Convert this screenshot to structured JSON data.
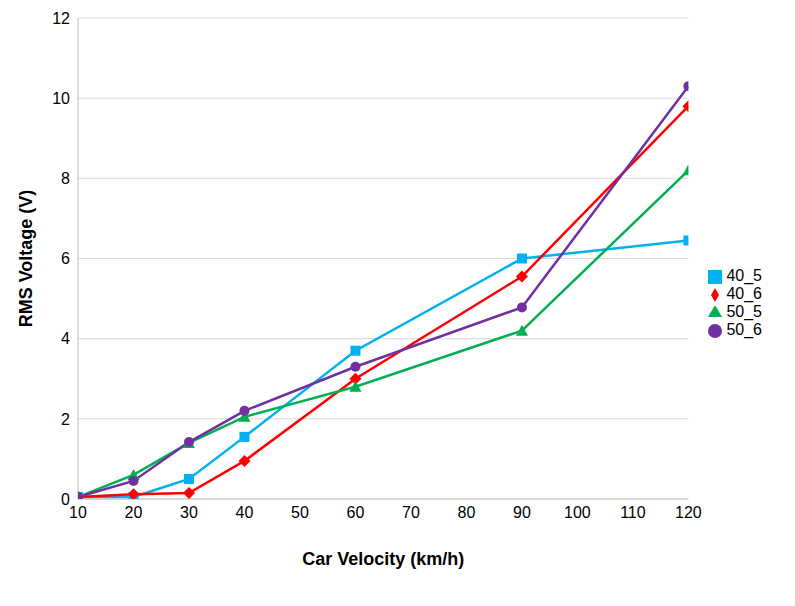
{
  "chart_data": {
    "type": "line",
    "x_label": "Car Velocity (km/h)",
    "y_label": "RMS Voltage (V)",
    "x": [
      10,
      20,
      30,
      40,
      60,
      90,
      120
    ],
    "xlim": [
      10,
      120
    ],
    "xticks": [
      10,
      20,
      30,
      40,
      50,
      60,
      70,
      80,
      90,
      100,
      110,
      120
    ],
    "ylim": [
      0,
      12
    ],
    "yticks": [
      0,
      2,
      4,
      6,
      8,
      10,
      12
    ],
    "grid": true,
    "legend": "right",
    "series": [
      {
        "name": "40_5",
        "color": "#00b0f0",
        "marker": "square",
        "values": [
          0.05,
          0.05,
          0.5,
          1.55,
          3.7,
          6.0,
          6.45
        ]
      },
      {
        "name": "40_6",
        "color": "#ff0000",
        "marker": "diamond",
        "values": [
          0.05,
          0.12,
          0.15,
          0.95,
          3.0,
          5.55,
          9.8
        ]
      },
      {
        "name": "50_5",
        "color": "#00b050",
        "marker": "triangle",
        "values": [
          0.05,
          0.6,
          1.4,
          2.05,
          2.8,
          4.2,
          8.2
        ]
      },
      {
        "name": "50_6",
        "color": "#7030a0",
        "marker": "circle",
        "values": [
          0.05,
          0.45,
          1.42,
          2.2,
          3.3,
          4.78,
          10.3
        ]
      }
    ]
  }
}
